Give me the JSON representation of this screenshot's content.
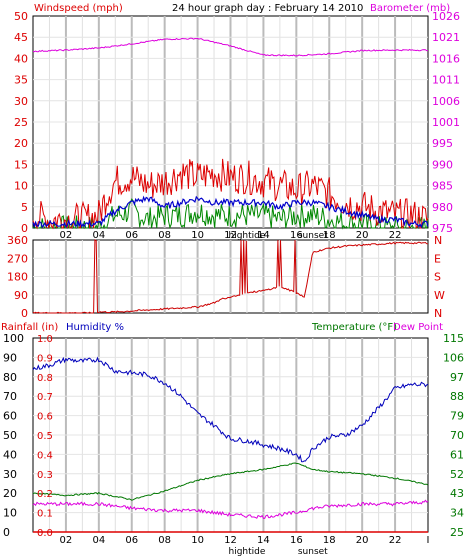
{
  "title": "24 hour graph day : February 14 2010",
  "colors": {
    "wind": "#dd0000",
    "wind_avg": "#0000cc",
    "wind_gust": "#008800",
    "barometer": "#dd00dd",
    "humidity": "#0000bb",
    "temperature": "#007700",
    "dewpoint": "#dd00dd",
    "rain": "#dd0000",
    "direction": "#cc0000",
    "grid": "#bbbbbb",
    "background": "#ffffff"
  },
  "chart_data": [
    {
      "type": "line",
      "name": "wind-barometer",
      "labels": {
        "left": "Windspeed (mph)",
        "right": "Barometer (mb)"
      },
      "x_ticks": [
        "02",
        "04",
        "06",
        "08",
        "10",
        "12",
        "14",
        "16",
        "18",
        "20",
        "22",
        "I"
      ],
      "x_markers": [
        "hightide",
        "sunset"
      ],
      "y_left_ticks": [
        "0",
        "5",
        "10",
        "15",
        "20",
        "25",
        "30",
        "35",
        "40",
        "45",
        "50"
      ],
      "y_left_range": [
        0,
        50
      ],
      "y_right_ticks": [
        "975",
        "980",
        "985",
        "990",
        "995",
        "1001",
        "1006",
        "1011",
        "1016",
        "1021",
        "1026"
      ],
      "y_right_range": [
        975,
        1026
      ],
      "series": [
        {
          "key": "windspeed",
          "hours": [
            0,
            1,
            2,
            3,
            4,
            4.5,
            5,
            6,
            7,
            8,
            9,
            10,
            11,
            12,
            13,
            14,
            15,
            16,
            17,
            18,
            19,
            20,
            21,
            22,
            23,
            24
          ],
          "values": [
            3,
            2,
            2,
            2,
            3,
            8,
            11,
            12,
            10,
            11,
            13,
            12,
            13,
            12,
            12,
            11,
            10,
            9,
            10,
            8,
            6,
            5,
            4,
            3,
            3,
            2
          ]
        },
        {
          "key": "wind_avg",
          "hours": [
            0,
            2,
            4,
            5,
            6,
            7,
            8,
            9,
            10,
            11,
            12,
            13,
            14,
            15,
            16,
            17,
            18,
            19,
            20,
            21,
            22,
            23,
            24
          ],
          "values": [
            1,
            1,
            1,
            4,
            6,
            7,
            5,
            6,
            7,
            6,
            6,
            6,
            6,
            5,
            6,
            6,
            5,
            4,
            3,
            2,
            2,
            1,
            1
          ]
        },
        {
          "key": "wind_gust",
          "hours": [
            0,
            2,
            4,
            5,
            6,
            7,
            8,
            9,
            10,
            11,
            12,
            13,
            14,
            15,
            16,
            17,
            18,
            19,
            20,
            21,
            22,
            23,
            24
          ],
          "values": [
            0,
            0,
            0,
            3,
            4,
            2,
            3,
            3,
            4,
            3,
            3,
            3,
            3,
            2,
            3,
            3,
            2,
            1,
            1,
            0,
            0,
            0,
            0
          ]
        },
        {
          "key": "barometer",
          "hours": [
            0,
            2,
            4,
            6,
            8,
            10,
            12,
            14,
            16,
            18,
            20,
            22,
            24
          ],
          "values": [
            1017.5,
            1017.8,
            1018.3,
            1019.3,
            1020.4,
            1020.6,
            1018.8,
            1016.6,
            1016.5,
            1016.9,
            1017.7,
            1017.8,
            1017.8
          ]
        }
      ]
    },
    {
      "type": "scatter",
      "name": "wind-direction",
      "y_left_ticks": [
        "0",
        "90",
        "180",
        "270",
        "360"
      ],
      "y_left_range": [
        0,
        360
      ],
      "y_right_ticks": [
        "N",
        "W",
        "S",
        "E",
        "N"
      ],
      "series": [
        {
          "key": "direction",
          "hours": [
            0,
            3.5,
            4,
            5,
            6,
            7,
            8,
            9,
            10,
            11,
            11.5,
            12,
            12.5,
            13,
            14,
            15,
            16,
            16.5,
            17,
            18,
            19,
            20,
            21,
            22,
            23.5
          ],
          "values": [
            0,
            0,
            5,
            5,
            10,
            15,
            20,
            25,
            30,
            50,
            70,
            80,
            90,
            100,
            110,
            130,
            100,
            80,
            300,
            320,
            330,
            335,
            340,
            345,
            345
          ]
        }
      ]
    },
    {
      "type": "line",
      "name": "rain-humidity-temperature",
      "labels": {
        "rain": "Rainfall (in)",
        "humidity": "Humidity %",
        "temperature": "Temperature (°F)",
        "dewpoint": "Dew Point"
      },
      "x_ticks": [
        "02",
        "04",
        "06",
        "08",
        "10",
        "12",
        "14",
        "16",
        "18",
        "20",
        "22",
        "I"
      ],
      "x_markers": [
        "hightide",
        "sunset"
      ],
      "y_rain_ticks": [
        "0.0",
        "0.1",
        "0.2",
        "0.3",
        "0.4",
        "0.5",
        "0.6",
        "0.7",
        "0.8",
        "0.9",
        "1.0"
      ],
      "y_rain_range": [
        0,
        1
      ],
      "y_hum_ticks": [
        "0",
        "10",
        "20",
        "30",
        "40",
        "50",
        "60",
        "70",
        "80",
        "90",
        "100"
      ],
      "y_hum_range": [
        0,
        100
      ],
      "y_temp_ticks": [
        "25",
        "34",
        "43",
        "52",
        "61",
        "70",
        "79",
        "88",
        "97",
        "106",
        "115"
      ],
      "y_temp_range": [
        25,
        115
      ],
      "series": [
        {
          "key": "humidity",
          "hours": [
            0,
            1,
            2,
            3,
            4,
            5,
            6,
            7,
            8,
            9,
            10,
            11,
            12,
            13,
            14,
            15,
            16,
            16.5,
            17,
            18,
            19,
            20,
            21,
            22,
            23,
            24
          ],
          "values": [
            84,
            86,
            89,
            88,
            89,
            83,
            82,
            81,
            77,
            70,
            61,
            55,
            48,
            47,
            45,
            43,
            40,
            36,
            43,
            49,
            50,
            55,
            64,
            74,
            76,
            76
          ]
        },
        {
          "key": "temperature",
          "hours": [
            0,
            2,
            4,
            6,
            8,
            10,
            12,
            14,
            16,
            17,
            18,
            20,
            22,
            24
          ],
          "values": [
            43,
            42,
            43,
            40,
            44,
            49,
            52,
            54,
            57,
            54,
            53,
            52,
            50,
            47
          ]
        },
        {
          "key": "dewpoint",
          "hours": [
            0,
            2,
            4,
            6,
            8,
            10,
            12,
            14,
            16,
            17,
            18,
            20,
            22,
            24
          ],
          "values": [
            38,
            38,
            38,
            36,
            35,
            35,
            33,
            32,
            34,
            36,
            37,
            38,
            38,
            39
          ]
        },
        {
          "key": "rainfall",
          "hours": [
            0,
            24
          ],
          "values": [
            0.0,
            0.0
          ]
        }
      ]
    }
  ]
}
